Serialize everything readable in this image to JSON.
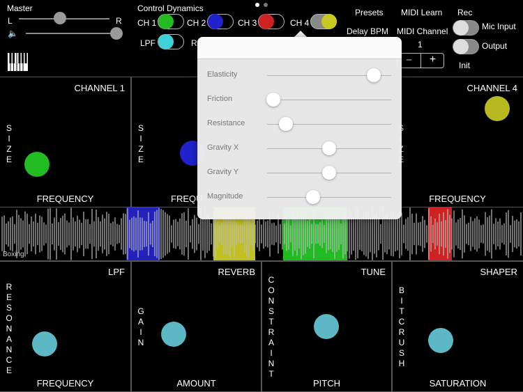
{
  "page_dots": [
    "active",
    "inactive"
  ],
  "master": {
    "label": "Master",
    "left": "L",
    "right": "R",
    "balance": 0.45,
    "volume": 1.0
  },
  "control_dynamics": {
    "label": "Control Dynamics",
    "channels": [
      {
        "label": "CH 1",
        "color": "#22bb22",
        "on": false
      },
      {
        "label": "CH 2",
        "color": "#2222cc",
        "on": false
      },
      {
        "label": "CH 3",
        "color": "#cc2222",
        "on": false
      },
      {
        "label": "CH 4",
        "color": "#c8c820",
        "on": true
      }
    ],
    "lpf": {
      "label": "LPF",
      "color": "#40d0d8"
    },
    "r_label": "R"
  },
  "presets_label": "Presets",
  "midi_learn_label": "MIDI Learn",
  "delay_bpm_label": "Delay BPM",
  "midi_channel": {
    "label": "MIDI Channel",
    "value": "1",
    "minus": "−",
    "plus": "+"
  },
  "rec": {
    "label": "Rec",
    "mic_input": "Mic Input",
    "output": "Output",
    "init": "Init"
  },
  "popup": {
    "sliders": [
      {
        "label": "Elasticity",
        "value": 0.86
      },
      {
        "label": "Friction",
        "value": 0.05
      },
      {
        "label": "Resistance",
        "value": 0.15
      },
      {
        "label": "Gravity X",
        "value": 0.5
      },
      {
        "label": "Gravity Y",
        "value": 0.5
      },
      {
        "label": "Magnitude",
        "value": 0.37
      }
    ]
  },
  "channel_panels": [
    {
      "title": "CHANNEL 1",
      "y_label": "SIZE",
      "x_label": "FREQUENCY",
      "color": "#22bb22"
    },
    {
      "title": "",
      "y_label": "SIZE",
      "x_label": "FREQU",
      "color": "#2222cc"
    },
    {
      "title": "CHANNEL 4",
      "y_label": "SIZE",
      "x_label": "FREQUENCY",
      "color": "#b8b820"
    }
  ],
  "waveform": {
    "label": "Boxing",
    "segments": [
      {
        "color": "#2222bb"
      },
      {
        "color": "#c0c020"
      },
      {
        "color": "#22bb22"
      },
      {
        "color": "#cc2222"
      }
    ]
  },
  "effect_panels": [
    {
      "title": "LPF",
      "y_label": "RESONANCE",
      "x_label": "FREQUENCY",
      "color": "#5cb8c4"
    },
    {
      "title": "REVERB",
      "y_label": "GAIN",
      "x_label": "AMOUNT",
      "color": "#5cb8c4"
    },
    {
      "title": "TUNE",
      "y_label": "CONSTRAINT",
      "x_label": "PITCH",
      "color": "#5cb8c4"
    },
    {
      "title": "SHAPER",
      "y_label": "BITCRUSH",
      "x_label": "SATURATION",
      "color": "#5cb8c4"
    }
  ]
}
